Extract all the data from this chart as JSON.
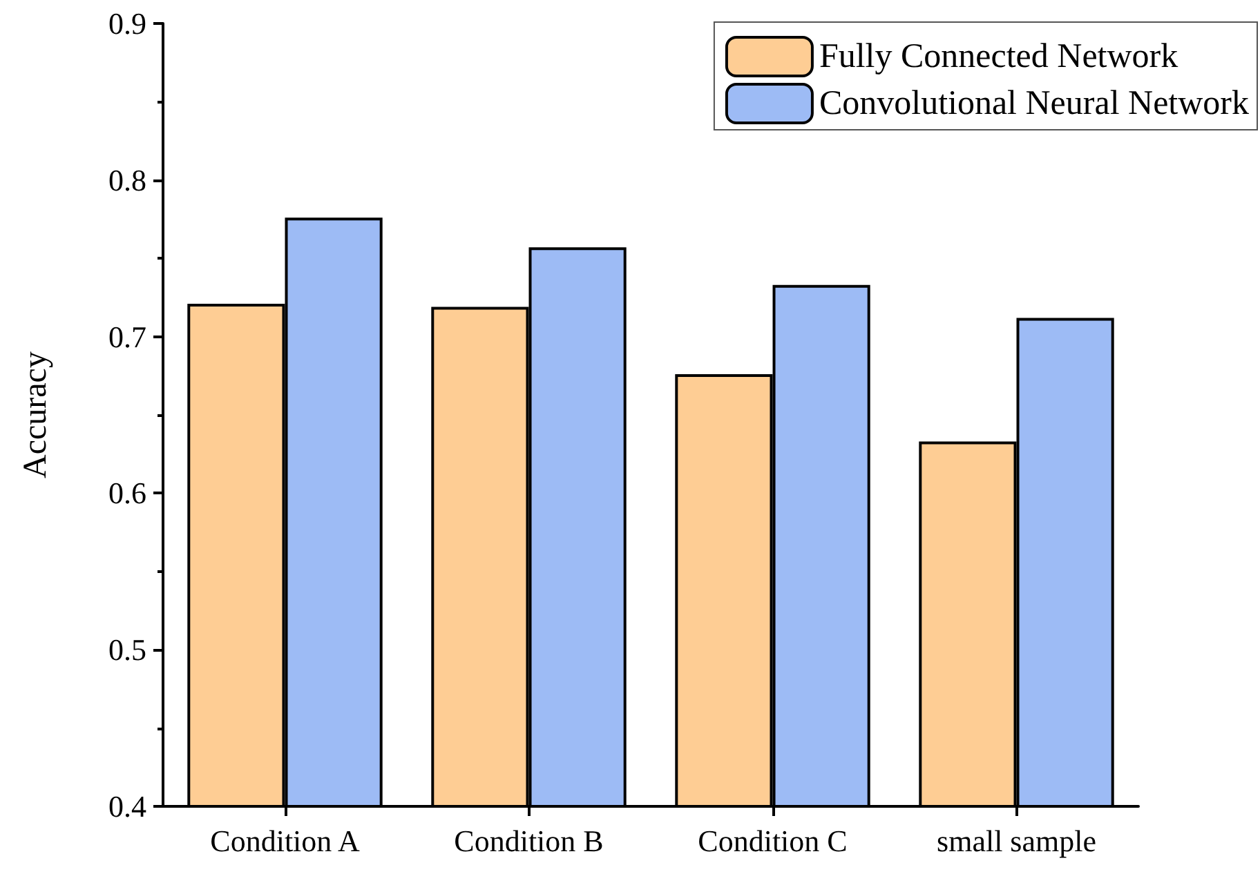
{
  "chart_data": {
    "type": "bar",
    "ylabel": "Accuracy",
    "categories": [
      "Condition A",
      "Condition B",
      "Condition C",
      "small sample"
    ],
    "series": [
      {
        "name": "Fully Connected Network",
        "color": "#fecd94",
        "values": [
          0.721,
          0.719,
          0.676,
          0.633
        ]
      },
      {
        "name": "Convolutional Neural Network",
        "color": "#9dbbf5",
        "values": [
          0.776,
          0.757,
          0.733,
          0.712
        ]
      }
    ],
    "ylim": [
      0.4,
      0.9
    ],
    "yticks": [
      0.4,
      0.5,
      0.6,
      0.7,
      0.8,
      0.9
    ],
    "legend": "top right"
  }
}
